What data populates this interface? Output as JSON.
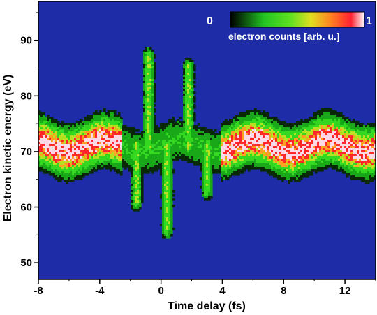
{
  "chart_data": {
    "type": "heatmap",
    "title": "",
    "xlabel": "Time delay (fs)",
    "ylabel": "Electron kinetic energy (eV)",
    "xlim": [
      -8,
      14
    ],
    "ylim": [
      47,
      97
    ],
    "x_ticks": [
      "-8",
      "-4",
      "0",
      "4",
      "8",
      "12"
    ],
    "y_ticks": [
      "50",
      "60",
      "70",
      "80",
      "90"
    ],
    "grid": false,
    "background_color": "#1e2ca8",
    "colorscale": [
      "#1e2ca8",
      "#001a00",
      "#1cc21c",
      "#40e020",
      "#d8e020",
      "#ff9020",
      "#ff2020",
      "#ffffff"
    ],
    "colorbar": {
      "min_label": "0",
      "max_label": "1",
      "title": "electron counts [arb. u.]",
      "placement": "top-right"
    },
    "description_points": {
      "band_center_ev": 71,
      "band_halfwidth_ev": 4,
      "streaking_centers_fs": [
        -1.6,
        -0.8,
        0.4,
        1.8,
        3.0
      ],
      "streaking_shift_ev": [
        -10,
        16,
        -15,
        14,
        -8
      ]
    }
  }
}
